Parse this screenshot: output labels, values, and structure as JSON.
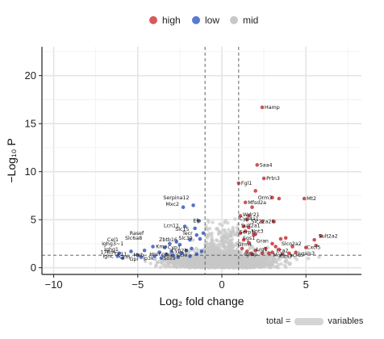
{
  "chart_data": {
    "type": "scatter",
    "xlabel": "Log₂ fold change",
    "ylabel": "−Log₁₀ P",
    "xlim": [
      -10.7,
      8.3
    ],
    "ylim": [
      -0.7,
      23
    ],
    "xticks": [
      -10,
      -5,
      0,
      5
    ],
    "yticks": [
      0,
      5,
      10,
      15,
      20
    ],
    "vlines": [
      -1,
      1
    ],
    "hline": 1.3,
    "grid": true,
    "legend": {
      "position": "top",
      "entries": [
        {
          "name": "high",
          "color": "#d95a5a"
        },
        {
          "name": "low",
          "color": "#5a78d8"
        },
        {
          "name": "mid",
          "color": "#c8c8c8"
        }
      ]
    },
    "series": [
      {
        "name": "high",
        "color": "#c0282d",
        "points": [
          [
            2.4,
            16.7
          ],
          [
            2.1,
            10.7
          ],
          [
            2.5,
            9.3
          ],
          [
            1.0,
            8.8
          ],
          [
            2.0,
            8.0
          ],
          [
            3.0,
            7.3
          ],
          [
            3.4,
            7.2
          ],
          [
            4.9,
            7.2
          ],
          [
            1.4,
            6.8
          ],
          [
            1.8,
            6.3
          ],
          [
            1.1,
            5.4
          ],
          [
            1.6,
            5.4
          ],
          [
            1.5,
            5.0
          ],
          [
            2.4,
            4.8
          ],
          [
            3.1,
            4.8
          ],
          [
            1.3,
            4.3
          ],
          [
            1.6,
            4.2
          ],
          [
            1.4,
            3.8
          ],
          [
            1.1,
            3.6
          ],
          [
            1.9,
            3.4
          ],
          [
            2.0,
            3.5
          ],
          [
            5.9,
            3.3
          ],
          [
            3.5,
            3.0
          ],
          [
            3.8,
            3.1
          ],
          [
            1.3,
            2.9
          ],
          [
            5.5,
            2.9
          ],
          [
            1.6,
            2.6
          ],
          [
            3.0,
            2.5
          ],
          [
            3.2,
            2.2
          ],
          [
            2.6,
            2.0
          ],
          [
            3.4,
            1.9
          ],
          [
            4.2,
            2.2
          ],
          [
            5.0,
            2.1
          ],
          [
            5.6,
            2.3
          ],
          [
            1.2,
            2.0
          ],
          [
            1.5,
            1.7
          ],
          [
            2.0,
            1.8
          ],
          [
            2.4,
            1.5
          ],
          [
            3.0,
            1.6
          ],
          [
            3.6,
            1.4
          ],
          [
            4.4,
            1.6
          ],
          [
            1.8,
            1.4
          ],
          [
            2.8,
            1.5
          ],
          [
            4.0,
            1.5
          ]
        ]
      },
      {
        "name": "low",
        "color": "#2e50b8",
        "points": [
          [
            -1.7,
            6.5
          ],
          [
            -2.3,
            6.3
          ],
          [
            -1.4,
            4.9
          ],
          [
            -2.2,
            4.3
          ],
          [
            -1.6,
            4.1
          ],
          [
            -1.1,
            3.6
          ],
          [
            -1.5,
            3.4
          ],
          [
            -1.3,
            3.0
          ],
          [
            -1.9,
            2.9
          ],
          [
            -2.7,
            2.7
          ],
          [
            -2.5,
            2.4
          ],
          [
            -3.1,
            2.5
          ],
          [
            -3.4,
            2.1
          ],
          [
            -4.1,
            2.2
          ],
          [
            -4.6,
            1.8
          ],
          [
            -5.4,
            1.7
          ],
          [
            -6.1,
            1.5
          ],
          [
            -6.2,
            1.2
          ],
          [
            -5.9,
            1.0
          ],
          [
            -4.8,
            1.1
          ],
          [
            -4.0,
            1.2
          ],
          [
            -3.6,
            1.0
          ],
          [
            -2.9,
            1.3
          ],
          [
            -2.1,
            1.8
          ],
          [
            -1.8,
            2.0
          ],
          [
            -1.2,
            1.7
          ],
          [
            -1.5,
            1.4
          ],
          [
            -2.4,
            1.5
          ],
          [
            -3.0,
            1.7
          ],
          [
            -3.7,
            1.6
          ],
          [
            -5.0,
            1.3
          ],
          [
            -2.6,
            1.1
          ],
          [
            -1.9,
            1.2
          ],
          [
            -3.3,
            1.4
          ]
        ]
      },
      {
        "name": "mid",
        "color": "#c8c8c8"
      }
    ],
    "labels_high": [
      {
        "text": "Hamp",
        "x": 2.4,
        "y": 16.7
      },
      {
        "text": "Saa4",
        "x": 2.1,
        "y": 10.7
      },
      {
        "text": "Prtn3",
        "x": 2.5,
        "y": 9.3
      },
      {
        "text": "Fgl1",
        "x": 1.0,
        "y": 8.8
      },
      {
        "text": "Orm3",
        "x": 2.0,
        "y": 7.3
      },
      {
        "text": "Mt2",
        "x": 4.9,
        "y": 7.2
      },
      {
        "text": "Mfsd2a",
        "x": 1.4,
        "y": 6.8
      },
      {
        "text": "Wdr21",
        "x": 1.1,
        "y": 5.5
      },
      {
        "text": "Cyp4a1",
        "x": 0.9,
        "y": 5.1
      },
      {
        "text": "Slc22a26",
        "x": 1.6,
        "y": 4.8
      },
      {
        "text": "Sulf2a1",
        "x": 1.0,
        "y": 4.4
      },
      {
        "text": "Nnt3",
        "x": 1.6,
        "y": 3.8
      },
      {
        "text": "Serp1",
        "x": 0.9,
        "y": 3.7
      },
      {
        "text": "Sgs1",
        "x": 1.1,
        "y": 3.1
      },
      {
        "text": "Sult2a2",
        "x": 5.6,
        "y": 3.3
      },
      {
        "text": "Gran",
        "x": 1.9,
        "y": 2.8
      },
      {
        "text": "Grm4",
        "x": 0.8,
        "y": 2.4
      },
      {
        "text": "Slco2a2",
        "x": 3.4,
        "y": 2.5
      },
      {
        "text": "Cxcl5",
        "x": 4.9,
        "y": 2.1
      },
      {
        "text": "Lca2",
        "x": 3.1,
        "y": 1.8
      },
      {
        "text": "Lrg1",
        "x": 1.9,
        "y": 1.9
      },
      {
        "text": "Igfbp",
        "x": 1.2,
        "y": 1.4
      },
      {
        "text": "Mgl",
        "x": 2.9,
        "y": 1.3
      },
      {
        "text": "Cbx7",
        "x": 3.3,
        "y": 1.2
      },
      {
        "text": "Lcn2",
        "x": 3.9,
        "y": 1.3
      },
      {
        "text": "Lgals3",
        "x": 4.4,
        "y": 1.5
      }
    ],
    "labels_low": [
      {
        "text": "Serpina12",
        "x": -1.8,
        "y": 7.3
      },
      {
        "text": "Mxc2",
        "x": -2.4,
        "y": 6.6
      },
      {
        "text": "Elp",
        "x": -1.1,
        "y": 4.9
      },
      {
        "text": "Lcn11",
        "x": -2.4,
        "y": 4.4
      },
      {
        "text": "Slc15",
        "x": -1.8,
        "y": 4.0
      },
      {
        "text": "Tecr",
        "x": -1.6,
        "y": 3.6
      },
      {
        "text": "Rasef",
        "x": -4.5,
        "y": 3.6
      },
      {
        "text": "Slc39",
        "x": -1.6,
        "y": 3.1
      },
      {
        "text": "Slc6a8",
        "x": -4.6,
        "y": 3.1
      },
      {
        "text": "Zbtb16",
        "x": -2.5,
        "y": 2.9
      },
      {
        "text": "Cel1",
        "x": -6.0,
        "y": 2.9
      },
      {
        "text": "Ighg3~1",
        "x": -5.7,
        "y": 2.5
      },
      {
        "text": "Kmo",
        "x": -3.1,
        "y": 2.2
      },
      {
        "text": "Cyp1",
        "x": -2.3,
        "y": 2.1
      },
      {
        "text": "Cyp2b",
        "x": -1.9,
        "y": 1.8
      },
      {
        "text": "Ighg1",
        "x": -6.0,
        "y": 1.9
      },
      {
        "text": "17Rm",
        "x": -6.2,
        "y": 1.6
      },
      {
        "text": "Tlr11",
        "x": -5.5,
        "y": 1.4
      },
      {
        "text": "Mcb",
        "x": -4.5,
        "y": 1.3
      },
      {
        "text": "Hnrr",
        "x": -3.5,
        "y": 1.4
      },
      {
        "text": "Gfra",
        "x": -2.8,
        "y": 1.3
      },
      {
        "text": "Ccl9",
        "x": -1.9,
        "y": 1.3
      },
      {
        "text": "Grm",
        "x": -5.3,
        "y": 1.1
      },
      {
        "text": "Ighc",
        "x": -6.3,
        "y": 1.2
      },
      {
        "text": "Ip3k",
        "x": -3.9,
        "y": 1.0
      },
      {
        "text": "Sox9",
        "x": -2.6,
        "y": 1.0
      },
      {
        "text": "Gpr",
        "x": -4.8,
        "y": 0.9
      }
    ]
  },
  "caption": {
    "prefix": "total =",
    "suffix": "variables"
  }
}
